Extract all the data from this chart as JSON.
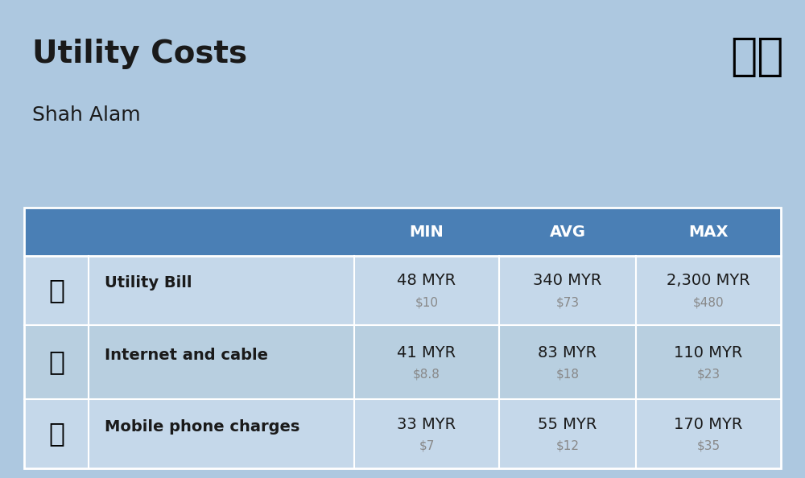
{
  "title": "Utility Costs",
  "subtitle": "Shah Alam",
  "bg_color": "#adc8e0",
  "header_bg": "#4a7fb5",
  "header_text_color": "#ffffff",
  "row_bg_light": "#c5d8ea",
  "row_bg_dark": "#b8cfe0",
  "cell_border_color": "#ffffff",
  "col_headers": [
    "MIN",
    "AVG",
    "MAX"
  ],
  "rows": [
    {
      "label": "Utility Bill",
      "min_myr": "48 MYR",
      "min_usd": "$10",
      "avg_myr": "340 MYR",
      "avg_usd": "$73",
      "max_myr": "2,300 MYR",
      "max_usd": "$480",
      "icon": "utility"
    },
    {
      "label": "Internet and cable",
      "min_myr": "41 MYR",
      "min_usd": "$8.8",
      "avg_myr": "83 MYR",
      "avg_usd": "$18",
      "max_myr": "110 MYR",
      "max_usd": "$23",
      "icon": "internet"
    },
    {
      "label": "Mobile phone charges",
      "min_myr": "33 MYR",
      "min_usd": "$7",
      "avg_myr": "55 MYR",
      "avg_usd": "$12",
      "max_myr": "170 MYR",
      "max_usd": "$35",
      "icon": "mobile"
    }
  ],
  "title_fontsize": 28,
  "subtitle_fontsize": 18,
  "header_fontsize": 14,
  "label_fontsize": 14,
  "value_fontsize": 14,
  "usd_fontsize": 11,
  "usd_color": "#888888",
  "label_color": "#1a1a1a",
  "value_color": "#1a1a1a"
}
